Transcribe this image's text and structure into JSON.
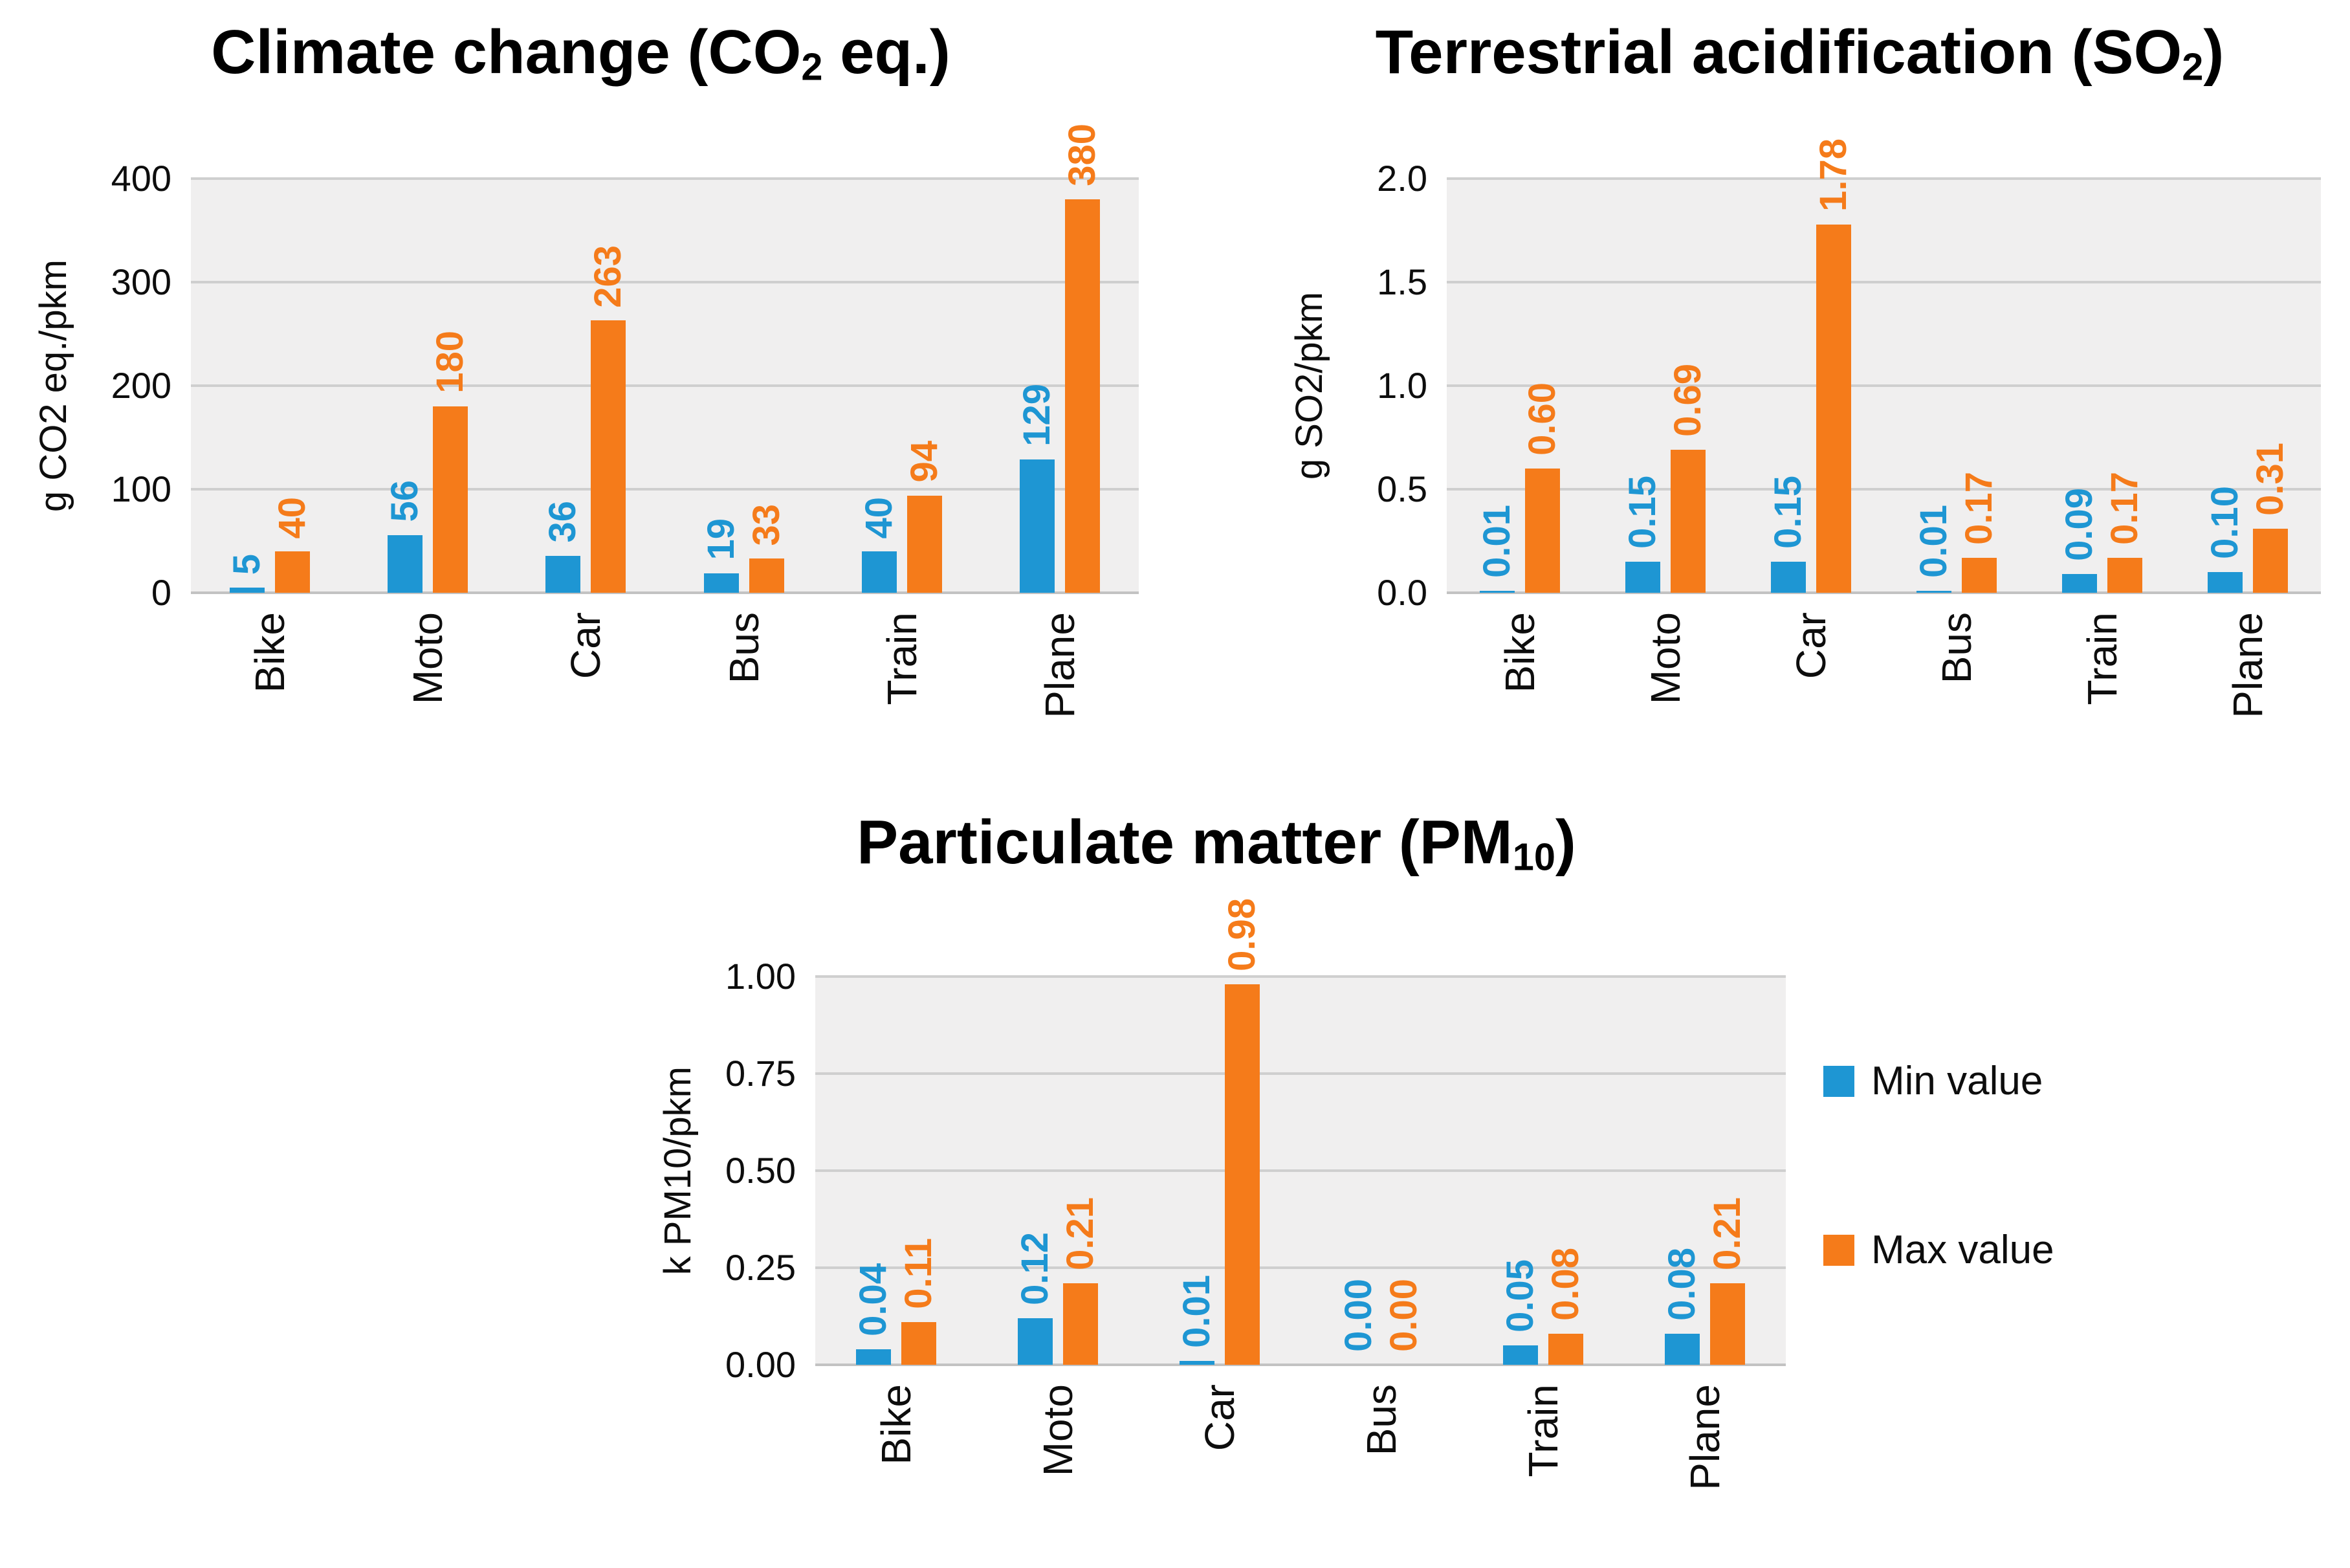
{
  "colors": {
    "min": "#1e96d3",
    "max": "#f57b1a",
    "plot_bg": "#f0efef",
    "gridline": "#cfcfcf",
    "baseline": "#c2c2c2",
    "title": "#000000",
    "text": "#0d0d0d"
  },
  "legend": {
    "position": "right-middle",
    "items": [
      {
        "key": "min",
        "label": "Min value"
      },
      {
        "key": "max",
        "label": "Max value"
      }
    ]
  },
  "chart_data": [
    {
      "id": "climate-change",
      "type": "bar",
      "title_text": "Climate change (CO2 eq.)",
      "title_parts": {
        "pre": "Climate change (CO",
        "sub": "2",
        "post": " eq.)"
      },
      "ylabel": "g CO2 eq./pkm",
      "xlabel": "",
      "ylim": [
        0,
        400
      ],
      "grid": true,
      "yticks": [
        {
          "value": 0,
          "label": "0"
        },
        {
          "value": 100,
          "label": "100"
        },
        {
          "value": 200,
          "label": "200"
        },
        {
          "value": 300,
          "label": "300"
        },
        {
          "value": 400,
          "label": "400"
        }
      ],
      "categories": [
        "Bike",
        "Moto",
        "Car",
        "Bus",
        "Train",
        "Plane"
      ],
      "series": [
        {
          "key": "min",
          "name": "Min value",
          "values": [
            5,
            56,
            36,
            19,
            40,
            129
          ],
          "labels": [
            "5",
            "56",
            "36",
            "19",
            "40",
            "129"
          ]
        },
        {
          "key": "max",
          "name": "Max value",
          "values": [
            40,
            180,
            263,
            33,
            94,
            380
          ],
          "labels": [
            "40",
            "180",
            "263",
            "33",
            "94",
            "380"
          ]
        }
      ]
    },
    {
      "id": "terrestrial-acidification",
      "type": "bar",
      "title_text": "Terrestrial acidification (SO2)",
      "title_parts": {
        "pre": "Terrestrial acidification (SO",
        "sub": "2",
        "post": ")"
      },
      "ylabel": "g SO2/pkm",
      "xlabel": "",
      "ylim": [
        0,
        2.0
      ],
      "grid": true,
      "yticks": [
        {
          "value": 0,
          "label": "0.0"
        },
        {
          "value": 0.5,
          "label": "0.5"
        },
        {
          "value": 1.0,
          "label": "1.0"
        },
        {
          "value": 1.5,
          "label": "1.5"
        },
        {
          "value": 2.0,
          "label": "2.0"
        }
      ],
      "categories": [
        "Bike",
        "Moto",
        "Car",
        "Bus",
        "Train",
        "Plane"
      ],
      "series": [
        {
          "key": "min",
          "name": "Min value",
          "values": [
            0.01,
            0.15,
            0.15,
            0.01,
            0.09,
            0.1
          ],
          "labels": [
            "0.01",
            "0.15",
            "0.15",
            "0.01",
            "0.09",
            "0.10"
          ]
        },
        {
          "key": "max",
          "name": "Max value",
          "values": [
            0.6,
            0.69,
            1.78,
            0.17,
            0.17,
            0.31
          ],
          "labels": [
            "0.60",
            "0.69",
            "1.78",
            "0.17",
            "0.17",
            "0.31"
          ]
        }
      ]
    },
    {
      "id": "particulate-matter",
      "type": "bar",
      "title_text": "Particulate matter (PM10)",
      "title_parts": {
        "pre": "Particulate matter (PM",
        "sub": "10",
        "post": ")"
      },
      "ylabel": "k PM10/pkm",
      "xlabel": "",
      "ylim": [
        0,
        1.0
      ],
      "grid": true,
      "yticks": [
        {
          "value": 0,
          "label": "0.00"
        },
        {
          "value": 0.25,
          "label": "0.25"
        },
        {
          "value": 0.5,
          "label": "0.50"
        },
        {
          "value": 0.75,
          "label": "0.75"
        },
        {
          "value": 1.0,
          "label": "1.00"
        }
      ],
      "categories": [
        "Bike",
        "Moto",
        "Car",
        "Bus",
        "Train",
        "Plane"
      ],
      "series": [
        {
          "key": "min",
          "name": "Min value",
          "values": [
            0.04,
            0.12,
            0.01,
            0.0,
            0.05,
            0.08
          ],
          "labels": [
            "0.04",
            "0.12",
            "0.01",
            "0.00",
            "0.05",
            "0.08"
          ]
        },
        {
          "key": "max",
          "name": "Max value",
          "values": [
            0.11,
            0.21,
            0.98,
            0.0,
            0.08,
            0.21
          ],
          "labels": [
            "0.11",
            "0.21",
            "0.98",
            "0.00",
            "0.08",
            "0.21"
          ]
        }
      ]
    }
  ]
}
